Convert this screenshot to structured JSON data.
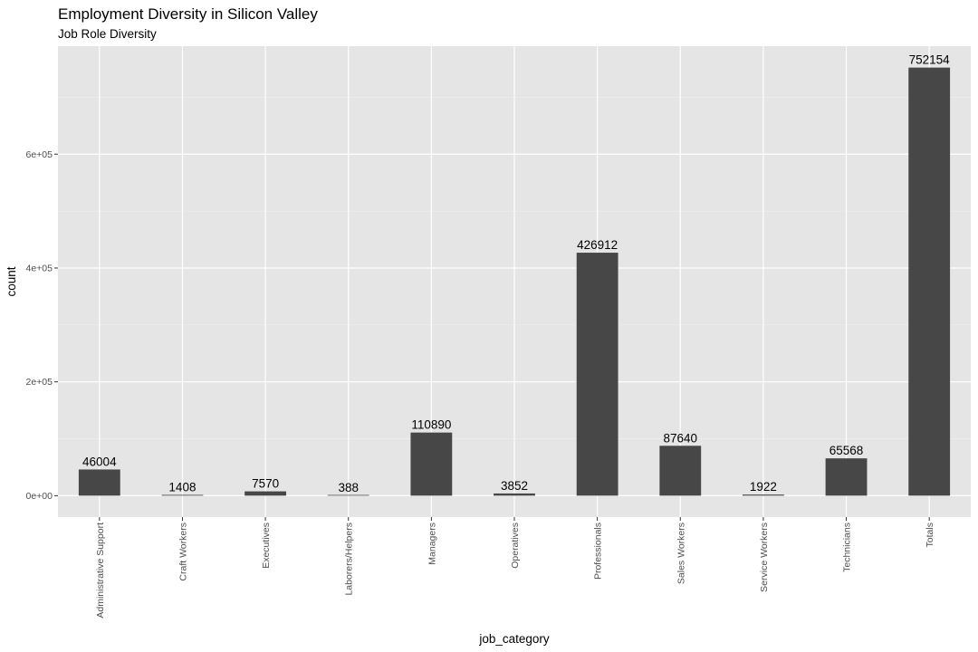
{
  "colors": {
    "panel_background": "#e5e5e5",
    "grid_major": "#ffffff",
    "grid_minor": "#f0f0f0",
    "bar_fill": "#474747",
    "tick_color": "#333333",
    "text": "#000000",
    "tick_text": "#4d4d4d"
  },
  "chart_data": {
    "type": "bar",
    "title": "Employment Diversity in Silicon Valley",
    "subtitle": "Job Role Diversity",
    "xlabel": "job_category",
    "ylabel": "count",
    "categories": [
      "Administrative Support",
      "Craft Workers",
      "Executives",
      "Laborers/Helpers",
      "Managers",
      "Operatives",
      "Professionals",
      "Sales Workers",
      "Service Workers",
      "Technicians",
      "Totals"
    ],
    "values": [
      46004,
      1408,
      7570,
      388,
      110890,
      3852,
      426912,
      87640,
      1922,
      65568,
      752154
    ],
    "data_labels": [
      "46004",
      "1408",
      "7570",
      "388",
      "110890",
      "3852",
      "426912",
      "87640",
      "1922",
      "65568",
      "752154"
    ],
    "y_ticks": [
      0,
      200000,
      400000,
      600000
    ],
    "y_tick_labels": [
      "0e+00",
      "2e+05",
      "4e+05",
      "6e+05"
    ],
    "y_minor_ticks": [
      100000,
      300000,
      500000,
      700000
    ],
    "ylim": [
      -37608,
      789762
    ],
    "grid": true,
    "legend": "none"
  }
}
